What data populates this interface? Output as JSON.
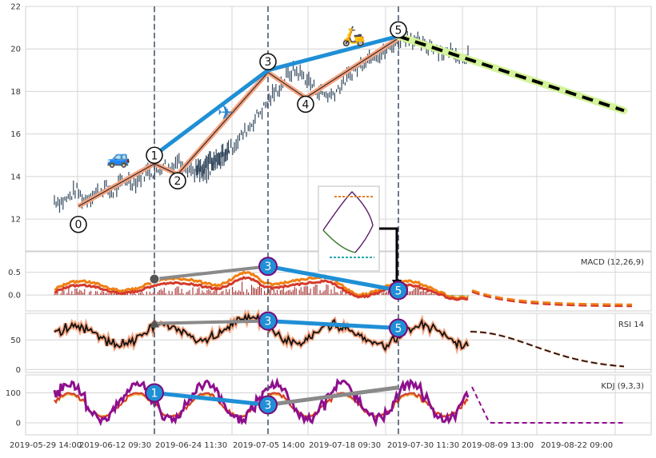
{
  "chart_data": [
    {
      "type": "line",
      "panel": "price",
      "subtype": "candlestick-with-wave-labels",
      "ylim": [
        10.5,
        22
      ],
      "yticks": [
        "12",
        "14",
        "16",
        "18",
        "20",
        "22"
      ],
      "ytick_values": [
        12,
        14,
        16,
        18,
        20,
        22
      ],
      "grid": true,
      "price_series": [
        12.9,
        12.8,
        13.0,
        13.4,
        12.9,
        13.1,
        13.3,
        13.5,
        13.2,
        13.6,
        13.9,
        13.7,
        14.0,
        14.3,
        14.1,
        14.6,
        14.4,
        14.8,
        14.5,
        14.3,
        14.1,
        14.0,
        14.4,
        14.8,
        15.2,
        15.6,
        16.0,
        16.4,
        16.9,
        17.3,
        17.8,
        18.2,
        18.7,
        19.0,
        18.8,
        18.5,
        18.1,
        17.9,
        17.8,
        18.1,
        18.5,
        18.9,
        19.2,
        19.5,
        19.8,
        19.7,
        20.0,
        20.3,
        20.5,
        20.6,
        20.3,
        20.1,
        20.2,
        20.0,
        19.8,
        19.9,
        19.6,
        19.8
      ],
      "wave_points": [
        {
          "label": "0",
          "price": 12.6
        },
        {
          "label": "1",
          "price": 15.0
        },
        {
          "label": "2",
          "price": 14.1
        },
        {
          "label": "3",
          "price": 19.4
        },
        {
          "label": "4",
          "price": 17.7
        },
        {
          "label": "5",
          "price": 20.9
        }
      ],
      "forecast": {
        "from": 20.0,
        "to": 17.1
      },
      "emoji": [
        "🚙",
        "✈",
        "🛵"
      ]
    },
    {
      "type": "line",
      "panel": "macd",
      "label": "MACD (12,26,9)",
      "ylim": [
        -0.35,
        0.95
      ],
      "yticks": [
        "0.0",
        "0.5"
      ],
      "ytick_values": [
        0.0,
        0.5
      ],
      "markers": [
        {
          "label": "",
          "value": 0.35
        },
        {
          "label": "3",
          "value": 0.63
        },
        {
          "label": "5",
          "value": 0.1
        }
      ]
    },
    {
      "type": "line",
      "panel": "rsi",
      "label": "RSI 14",
      "ylim": [
        -5,
        95
      ],
      "yticks": [
        "0",
        "50"
      ],
      "ytick_values": [
        0,
        50
      ],
      "markers": [
        {
          "label": "",
          "value": 78
        },
        {
          "label": "3",
          "value": 82
        },
        {
          "label": "5",
          "value": 70
        }
      ]
    },
    {
      "type": "line",
      "panel": "kdj",
      "label": "KDJ (9,3,3)",
      "ylim": [
        -40,
        160
      ],
      "yticks": [
        "0",
        "100"
      ],
      "ytick_values": [
        0,
        100
      ],
      "markers": [
        {
          "label": "1",
          "value": 100
        },
        {
          "label": "3",
          "value": 60
        },
        {
          "label": "",
          "value": 118
        }
      ]
    }
  ],
  "x_axis": {
    "tick_labels": [
      "2019-05-29 14:00",
      "2019-06-12 09:30",
      "2019-06-24 11:30",
      "2019-07-05 14:00",
      "2019-07-18 09:30",
      "2019-07-30 11:30",
      "2019-08-09 13:00",
      "2019-08-22 09:00"
    ]
  },
  "colors": {
    "wave_line": "#1f8fd6",
    "price_bar": "#34495e",
    "salmon": "#f4a582",
    "forecast_green": "#d4f39a",
    "forecast_dash": "#000000",
    "macd_orange": "#f07f12",
    "macd_red": "#d43a2a",
    "hist_red": "#9e1b1b",
    "hist_green": "#7a8f1a",
    "kdj_purple": "#8e0f8e",
    "gray_line": "#8a8a8a",
    "marker_fill": "#1f8fd6",
    "marker_edge": "#7a0a7a",
    "vline": "#4a5a70"
  }
}
